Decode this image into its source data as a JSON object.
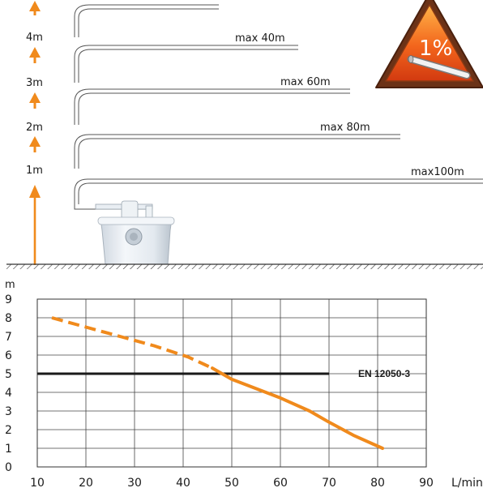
{
  "illustration": {
    "height_labels": [
      "4m",
      "3m",
      "2m",
      "1m"
    ],
    "distance_labels": [
      "max 40m",
      "max 60m",
      "max 80m",
      "max100m"
    ],
    "warning_sign": {
      "text": "1%",
      "icon": "pipe-slope-icon"
    },
    "unit_icon": "macerator-pump-icon",
    "colors": {
      "arrow": "#f08a1c",
      "sign_outer": "#5a2a14",
      "sign_inner": "#f25a1a"
    }
  },
  "chart_data": {
    "type": "line",
    "xlabel": "L/min",
    "ylabel": "m",
    "xlim": [
      10,
      90
    ],
    "ylim": [
      0,
      9
    ],
    "x_ticks": [
      10,
      20,
      30,
      40,
      50,
      60,
      70,
      80,
      90
    ],
    "y_ticks": [
      0,
      1,
      2,
      3,
      4,
      5,
      6,
      7,
      8,
      9
    ],
    "grid": true,
    "series": [
      {
        "style": "dashed",
        "color": "#f08a1c",
        "x": [
          13,
          20,
          27,
          34,
          41,
          46
        ],
        "y": [
          8.0,
          7.5,
          7.0,
          6.5,
          5.9,
          5.3
        ]
      },
      {
        "style": "solid",
        "color": "#f08a1c",
        "x": [
          46,
          50,
          55,
          60,
          66,
          70,
          75,
          81
        ],
        "y": [
          5.3,
          4.7,
          4.2,
          3.7,
          3.0,
          2.4,
          1.7,
          1.0
        ]
      }
    ],
    "reference_line": {
      "y": 5,
      "x_range": [
        10,
        70
      ],
      "label": "EN 12050-3",
      "color": "#1a1a1a"
    }
  }
}
